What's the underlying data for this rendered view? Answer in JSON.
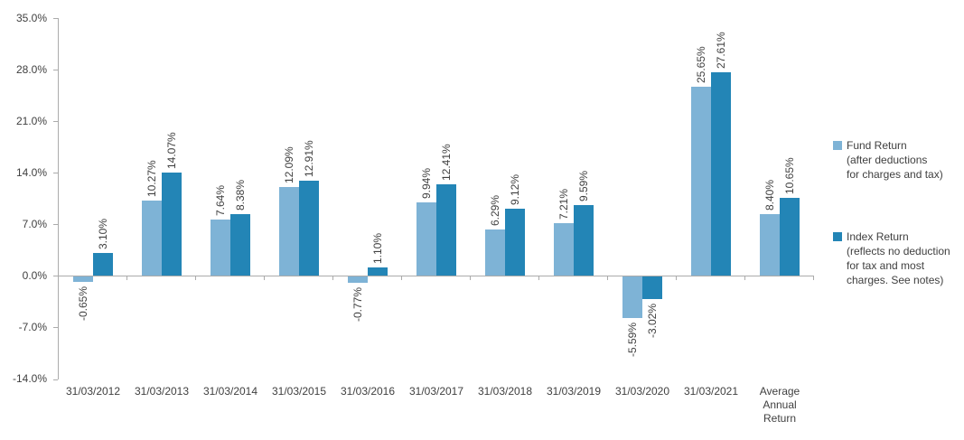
{
  "chart_data": {
    "type": "bar",
    "title": "",
    "xlabel": "",
    "ylabel": "",
    "grid": false,
    "legend_position": "right",
    "ylim": [
      -14,
      35
    ],
    "y_ticks": [
      "35.0%",
      "28.0%",
      "21.0%",
      "14.0%",
      "7.0%",
      "0.0%",
      "-7.0%",
      "-14.0%"
    ],
    "y_tick_values": [
      35,
      28,
      21,
      14,
      7,
      0,
      -7,
      -14
    ],
    "categories": [
      "31/03/2012",
      "31/03/2013",
      "31/03/2014",
      "31/03/2015",
      "31/03/2016",
      "31/03/2017",
      "31/03/2018",
      "31/03/2019",
      "31/03/2020",
      "31/03/2021",
      "Average Annual Return"
    ],
    "series": [
      {
        "name": "Fund Return (after deductions for charges and tax)",
        "color": "#7eb3d6",
        "values": [
          -0.65,
          10.27,
          7.64,
          12.09,
          -0.77,
          9.94,
          6.29,
          7.21,
          -5.59,
          25.65,
          8.4
        ],
        "labels": [
          "-0.65%",
          "10.27%",
          "7.64%",
          "12.09%",
          "-0.77%",
          "9.94%",
          "6.29%",
          "7.21%",
          "-5.59%",
          "25.65%",
          "8.40%"
        ]
      },
      {
        "name": "Index Return (reflects no deduction for tax and most charges. See notes)",
        "color": "#2385b6",
        "values": [
          3.1,
          14.07,
          8.38,
          12.91,
          1.1,
          12.41,
          9.12,
          9.59,
          -3.02,
          27.61,
          10.65
        ],
        "labels": [
          "3.10%",
          "14.07%",
          "8.38%",
          "12.91%",
          "1.10%",
          "12.41%",
          "9.12%",
          "9.59%",
          "-3.02%",
          "27.61%",
          "10.65%"
        ]
      }
    ],
    "legend": [
      {
        "color": "#7eb3d6",
        "lines": [
          "Fund Return",
          "(after deductions",
          "for charges and tax)"
        ]
      },
      {
        "color": "#2385b6",
        "lines": [
          "Index Return",
          "(reflects no deduction",
          "for tax and most",
          "charges. See notes)"
        ]
      }
    ]
  }
}
